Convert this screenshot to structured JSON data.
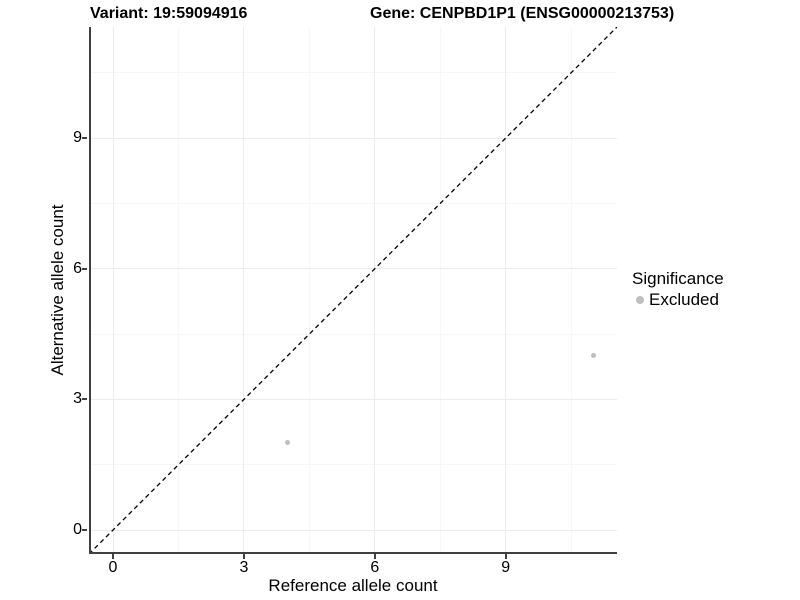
{
  "chart_data": {
    "type": "scatter",
    "title_left": "Variant: 19:59094916",
    "title_right": "Gene: CENPBD1P1 (ENSG00000213753)",
    "xlabel": "Reference allele count",
    "ylabel": "Alternative allele count",
    "xlim": [
      -0.55,
      11.55
    ],
    "ylim": [
      -0.55,
      11.55
    ],
    "x_ticks": [
      0,
      3,
      6,
      9
    ],
    "y_ticks": [
      0,
      3,
      6,
      9
    ],
    "x_minor_ticks": [
      1.5,
      4.5,
      7.5,
      10.5
    ],
    "y_minor_ticks": [
      1.5,
      4.5,
      7.5,
      10.5
    ],
    "grid": "major and minor gridlines on white background",
    "series": [
      {
        "name": "Excluded",
        "color": "#bebebe",
        "points": [
          {
            "x": 4,
            "y": 2
          },
          {
            "x": 11,
            "y": 4
          }
        ]
      }
    ],
    "reference_line": {
      "type": "identity y=x",
      "style": "dashed",
      "color": "#000000"
    },
    "legend": {
      "title": "Significance",
      "position": "right",
      "entries": [
        {
          "label": "Excluded",
          "color": "#bebebe"
        }
      ]
    },
    "colors": {
      "background": "#ffffff",
      "axis_line": "#404040",
      "grid_major": "#ebebeb",
      "grid_minor": "#f6f6f6",
      "text": "#000000"
    }
  }
}
